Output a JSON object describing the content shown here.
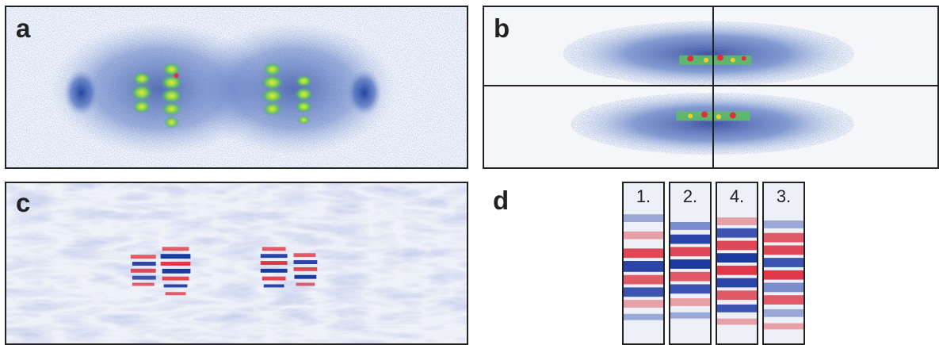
{
  "figure": {
    "panels": [
      {
        "id": "a",
        "label": "a"
      },
      {
        "id": "b",
        "label": "b"
      },
      {
        "id": "c",
        "label": "c"
      },
      {
        "id": "d",
        "label": "d"
      }
    ],
    "strips": [
      {
        "label": "1."
      },
      {
        "label": "2."
      },
      {
        "label": "4."
      },
      {
        "label": "3."
      }
    ],
    "colors": {
      "background_light": "#f2f4f8",
      "noise_blue": "#3a5fb0",
      "signal_green": "#6fd24a",
      "signal_red": "#e0303a",
      "signal_blue": "#1a3aa0",
      "frame": "#222222"
    }
  }
}
